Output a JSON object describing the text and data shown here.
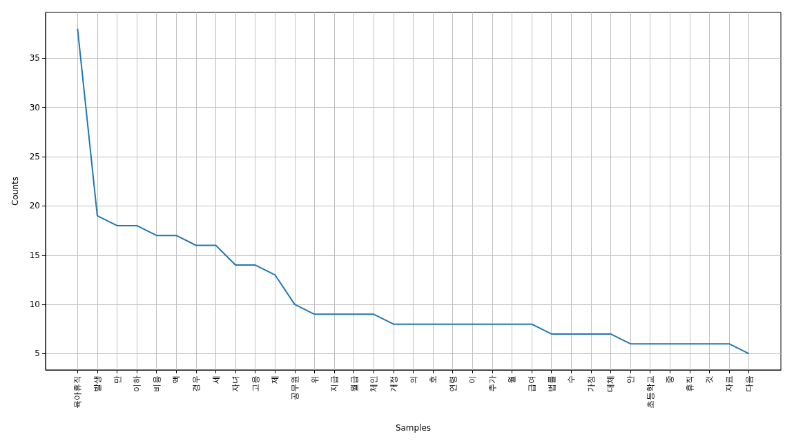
{
  "chart_data": {
    "type": "line",
    "xlabel": "Samples",
    "ylabel": "Counts",
    "categories": [
      "육아휴직",
      "발생",
      "만",
      "이하",
      "비용",
      "액",
      "경우",
      "세",
      "자녀",
      "고용",
      "제",
      "공무원",
      "위",
      "지급",
      "월급",
      "체인",
      "개정",
      "의",
      "호",
      "연령",
      "이",
      "추가",
      "월",
      "급여",
      "법률",
      "수",
      "가정",
      "대체",
      "안",
      "초등학교",
      "중",
      "휴직",
      "것",
      "자료",
      "다음"
    ],
    "series": [
      {
        "color": "#1f77b4",
        "values": [
          38,
          19,
          18,
          18,
          17,
          17,
          16,
          16,
          14,
          14,
          13,
          10,
          9,
          9,
          9,
          9,
          8,
          8,
          8,
          8,
          8,
          8,
          8,
          8,
          7,
          7,
          7,
          7,
          6,
          6,
          6,
          6,
          6,
          6,
          5
        ]
      }
    ],
    "ylim": [
      3.35,
      39.65
    ],
    "yticks": [
      5,
      10,
      15,
      20,
      25,
      30,
      35
    ],
    "grid": true,
    "marker": "none",
    "line_style": "solid"
  }
}
